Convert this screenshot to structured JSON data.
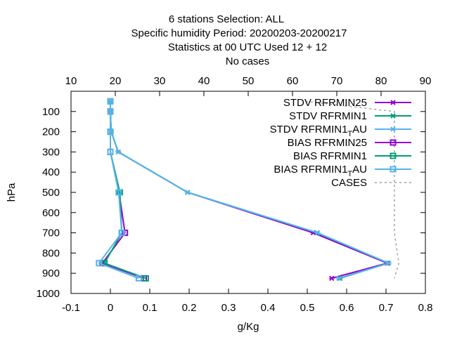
{
  "title": {
    "line1": "6 stations Selection: ALL",
    "line2": "Specific humidity  Period: 20200203-20200217",
    "line3": "Statistics at 00 UTC  Used  12 + 12",
    "line4": "No cases"
  },
  "chart_data": {
    "type": "line",
    "xlabel": "g/Kg",
    "ylabel": "hPa",
    "x_axis_bottom": {
      "range": [
        -0.1,
        0.8
      ],
      "ticks": [
        "-0.1",
        "0",
        "0.1",
        "0.2",
        "0.3",
        "0.4",
        "0.5",
        "0.6",
        "0.7",
        "0.8"
      ]
    },
    "x_axis_top": {
      "range": [
        10,
        90
      ],
      "ticks": [
        "10",
        "20",
        "30",
        "40",
        "50",
        "60",
        "70",
        "80",
        "90"
      ]
    },
    "y_axis": {
      "range": [
        1000,
        0
      ],
      "ticks": [
        "100",
        "200",
        "300",
        "400",
        "500",
        "600",
        "700",
        "800",
        "900",
        "1000"
      ],
      "inverted": true
    },
    "grid": false,
    "legend_position": "top-right",
    "levels": [
      50,
      100,
      200,
      300,
      500,
      700,
      850,
      925
    ],
    "series": [
      {
        "name": "STDV RFRMIN25",
        "color": "#9400d3",
        "marker": "x",
        "axis": "bottom",
        "values": [
          0.0,
          0.0,
          0.002,
          0.02,
          0.196,
          0.515,
          0.703,
          0.562
        ]
      },
      {
        "name": "STDV RFRMIN1",
        "color": "#009e73",
        "marker": "x",
        "axis": "bottom",
        "values": [
          0.0,
          0.0,
          0.002,
          0.02,
          0.196,
          0.525,
          0.706,
          0.583
        ]
      },
      {
        "name": "STDV RFRMIN1_TAU",
        "name_prefix": "STDV RFRMIN1",
        "name_sub": "T",
        "name_suffix": "AU",
        "color": "#56b4e9",
        "marker": "x",
        "axis": "bottom",
        "values": [
          0.0,
          0.0,
          0.002,
          0.02,
          0.196,
          0.526,
          0.707,
          0.58
        ]
      },
      {
        "name": "BIAS RFRMIN25",
        "color": "#9400d3",
        "marker": "square",
        "axis": "bottom",
        "values": [
          0.0,
          0.0,
          0.0,
          0.0,
          0.022,
          0.037,
          -0.02,
          0.085
        ]
      },
      {
        "name": "BIAS RFRMIN1",
        "color": "#009e73",
        "marker": "square",
        "axis": "bottom",
        "values": [
          0.0,
          0.0,
          0.0,
          0.0,
          0.024,
          0.029,
          -0.015,
          0.09
        ]
      },
      {
        "name": "BIAS RFRMIN1_TAU",
        "name_prefix": "BIAS RFRMIN1",
        "name_sub": "T",
        "name_suffix": "AU",
        "color": "#56b4e9",
        "marker": "square",
        "axis": "bottom",
        "values": [
          0.0,
          0.0,
          0.0,
          0.0,
          0.021,
          0.029,
          -0.029,
          0.072
        ]
      },
      {
        "name": "CASES",
        "color": "#a0a0a0",
        "marker": "none",
        "dashed": true,
        "axis": "top",
        "values": [
          63,
          83,
          83,
          83,
          83,
          83,
          84,
          83
        ]
      }
    ]
  }
}
